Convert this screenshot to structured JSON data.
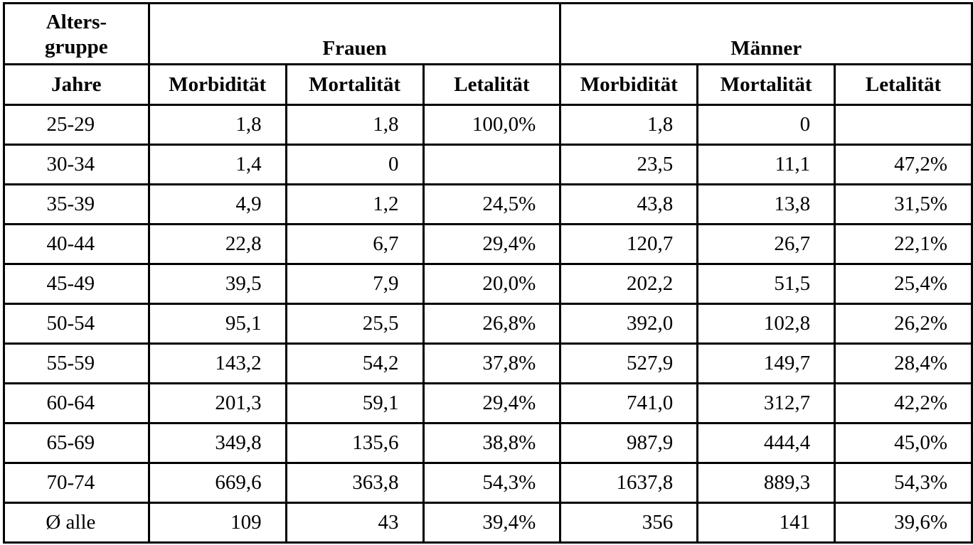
{
  "header": {
    "age_group_line1": "Alters-",
    "age_group_line2": "gruppe",
    "years": "Jahre",
    "women": "Frauen",
    "men": "Männer",
    "morbidity": "Morbidität",
    "mortality": "Mortalität",
    "lethality": "Letalität"
  },
  "rows": [
    {
      "age": "25-29",
      "f_morb": "1,8",
      "f_mort": "1,8",
      "f_let": "100,0%",
      "m_morb": "1,8",
      "m_mort": "0",
      "m_let": ""
    },
    {
      "age": "30-34",
      "f_morb": "1,4",
      "f_mort": "0",
      "f_let": "",
      "m_morb": "23,5",
      "m_mort": "11,1",
      "m_let": "47,2%"
    },
    {
      "age": "35-39",
      "f_morb": "4,9",
      "f_mort": "1,2",
      "f_let": "24,5%",
      "m_morb": "43,8",
      "m_mort": "13,8",
      "m_let": "31,5%"
    },
    {
      "age": "40-44",
      "f_morb": "22,8",
      "f_mort": "6,7",
      "f_let": "29,4%",
      "m_morb": "120,7",
      "m_mort": "26,7",
      "m_let": "22,1%"
    },
    {
      "age": "45-49",
      "f_morb": "39,5",
      "f_mort": "7,9",
      "f_let": "20,0%",
      "m_morb": "202,2",
      "m_mort": "51,5",
      "m_let": "25,4%"
    },
    {
      "age": "50-54",
      "f_morb": "95,1",
      "f_mort": "25,5",
      "f_let": "26,8%",
      "m_morb": "392,0",
      "m_mort": "102,8",
      "m_let": "26,2%"
    },
    {
      "age": "55-59",
      "f_morb": "143,2",
      "f_mort": "54,2",
      "f_let": "37,8%",
      "m_morb": "527,9",
      "m_mort": "149,7",
      "m_let": "28,4%"
    },
    {
      "age": "60-64",
      "f_morb": "201,3",
      "f_mort": "59,1",
      "f_let": "29,4%",
      "m_morb": "741,0",
      "m_mort": "312,7",
      "m_let": "42,2%"
    },
    {
      "age": "65-69",
      "f_morb": "349,8",
      "f_mort": "135,6",
      "f_let": "38,8%",
      "m_morb": "987,9",
      "m_mort": "444,4",
      "m_let": "45,0%"
    },
    {
      "age": "70-74",
      "f_morb": "669,6",
      "f_mort": "363,8",
      "f_let": "54,3%",
      "m_morb": "1637,8",
      "m_mort": "889,3",
      "m_let": "54,3%"
    },
    {
      "age": "Ø alle",
      "f_morb": "109",
      "f_mort": "43",
      "f_let": "39,4%",
      "m_morb": "356",
      "m_mort": "141",
      "m_let": "39,6%"
    }
  ]
}
